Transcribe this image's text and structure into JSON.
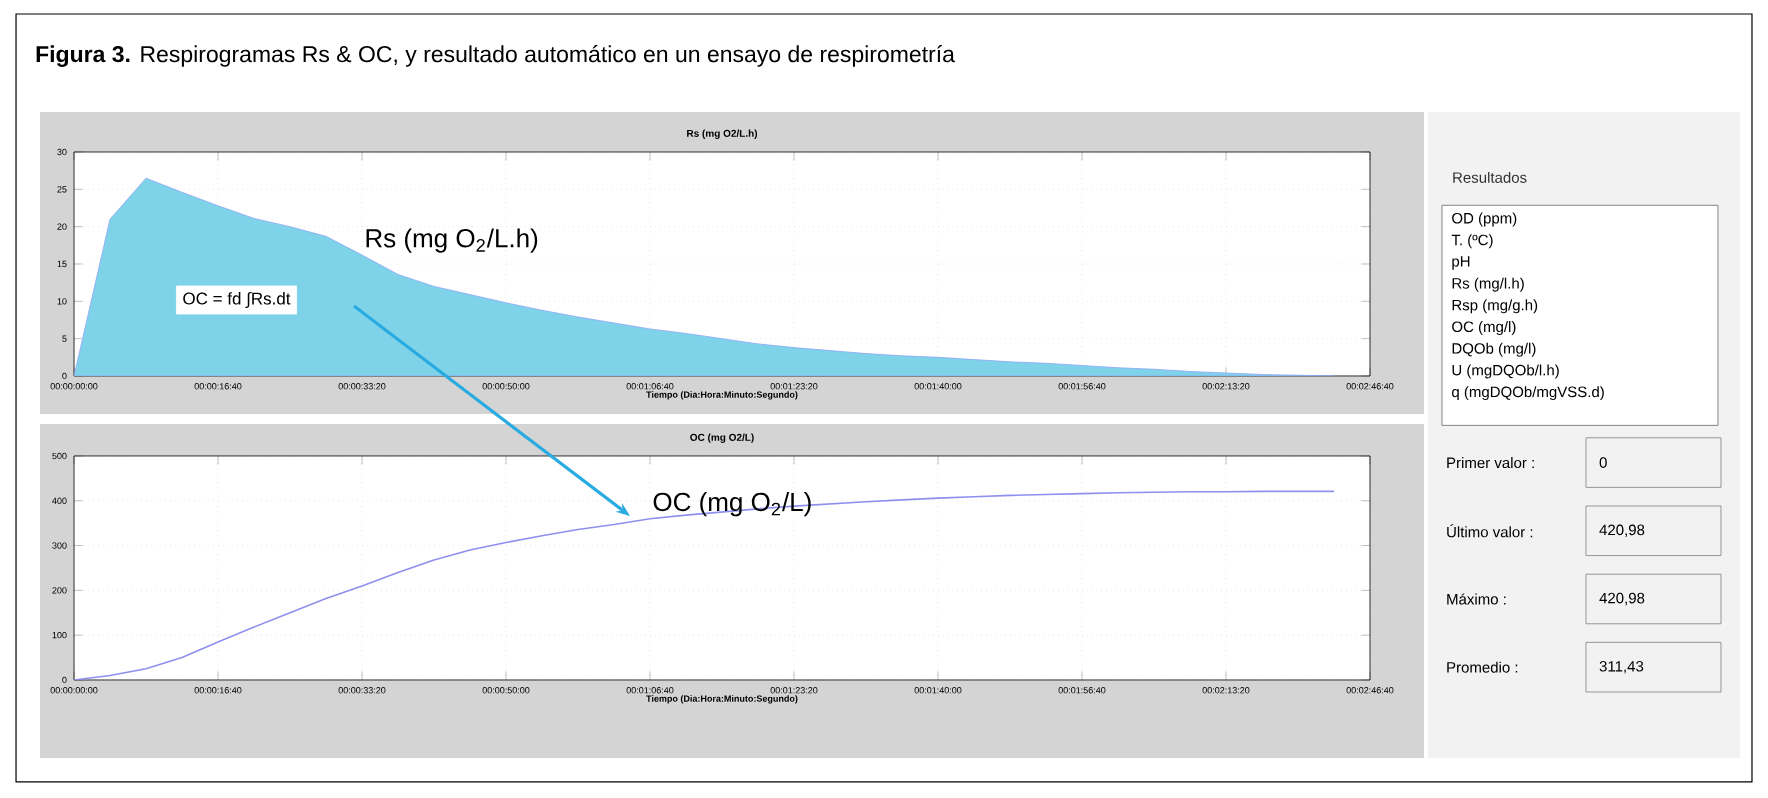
{
  "chart_data": [
    {
      "type": "area",
      "title": "Rs (mg O2/L.h)",
      "xlabel": "Tiempo (Dia:Hora:Minuto:Segundo)",
      "annotations": [
        "**Figura 3.**  Respirogramas Rs & OC, y resultado automático en un ensayo de respirometría",
        {
          "text": "Rs (mg O$_{2}$/L.h)",
          "x": "00:00:33:20",
          "y": 16.2
        },
        "OC = fd ∫Rs.dt"
      ],
      "categories": [
        "00:00:00:00",
        null,
        null,
        null,
        "00:00:16:40",
        null,
        null,
        null,
        "00:00:33:20",
        null,
        null,
        null,
        "00:00:50:00",
        null,
        null,
        null,
        "00:01:06:40",
        null,
        null,
        null,
        "00:01:23:20",
        null,
        null,
        null,
        "00:01:40:00",
        null,
        null,
        null,
        "00:01:56:40",
        null,
        null,
        null,
        "00:02:13:20",
        null,
        null,
        null,
        "00:02:46:40"
      ],
      "series": [
        {
          "color": "#7fd3e8",
          "values": [
            0,
            21,
            26.5,
            24.6,
            22.8,
            21.1,
            20,
            18.7,
            16.2,
            13.6,
            12,
            10.9,
            9.8,
            8.8,
            7.9,
            7.1,
            6.3,
            5.7,
            5.0,
            4.3,
            3.8,
            3.4,
            3.0,
            2.7,
            2.5,
            2.2,
            1.9,
            1.7,
            1.4,
            1.1,
            0.9,
            0.6,
            0.4,
            0.2,
            0.1,
            0,
            null
          ]
        }
      ],
      "ylim": [
        0,
        30
      ],
      "yticks": [
        0,
        5,
        10,
        15,
        20,
        25,
        30
      ],
      "grid": true
    },
    {
      "type": "line",
      "title": "OC (mg O2/L)",
      "xlabel": "Tiempo (Dia:Hora:Minuto:Segundo)",
      "annotations": [
        {
          "text": "OC (mg O$_{2}$/L)",
          "x": "00:01:06:40",
          "y": 360
        }
      ],
      "categories": [
        "00:00:00:00",
        null,
        null,
        null,
        "00:00:16:40",
        null,
        null,
        null,
        "00:00:33:20",
        null,
        null,
        null,
        "00:00:50:00",
        null,
        null,
        null,
        "00:01:06:40",
        null,
        null,
        null,
        "00:01:23:20",
        null,
        null,
        null,
        "00:01:40:00",
        null,
        null,
        null,
        "00:01:56:40",
        null,
        null,
        null,
        "00:02:13:20",
        null,
        null,
        null,
        "00:02:46:40"
      ],
      "series": [
        {
          "color": "#8f8fef",
          "values": [
            0,
            10,
            25,
            50,
            85,
            118,
            150,
            182,
            210,
            240,
            268,
            290,
            307,
            322,
            336,
            347,
            360,
            368,
            375,
            382,
            388,
            393,
            398,
            402,
            406,
            409,
            412,
            414,
            416,
            418,
            419,
            420,
            420,
            421,
            421,
            421,
            null
          ]
        }
      ],
      "ylim": [
        0,
        500
      ],
      "yticks": [
        0,
        100,
        200,
        300,
        400,
        500
      ],
      "grid": true
    },
    {
      "type": "other",
      "title": "Resultados",
      "categories": [
        "OD (ppm)",
        "T. (ºC)",
        "pH",
        "Rs (mg/l.h)",
        "Rsp (mg/g.h)",
        "OC (mg/l)",
        "DQOb (mg/l)",
        "U (mgDQOb/l.h)",
        "q (mgDQOb/mgVSS.d)"
      ],
      "annotations": [
        "Primer valor :",
        "0",
        "Último valor :",
        "420,98",
        "Máximo :",
        "420,98",
        "Promedio :",
        "311,43"
      ]
    }
  ]
}
